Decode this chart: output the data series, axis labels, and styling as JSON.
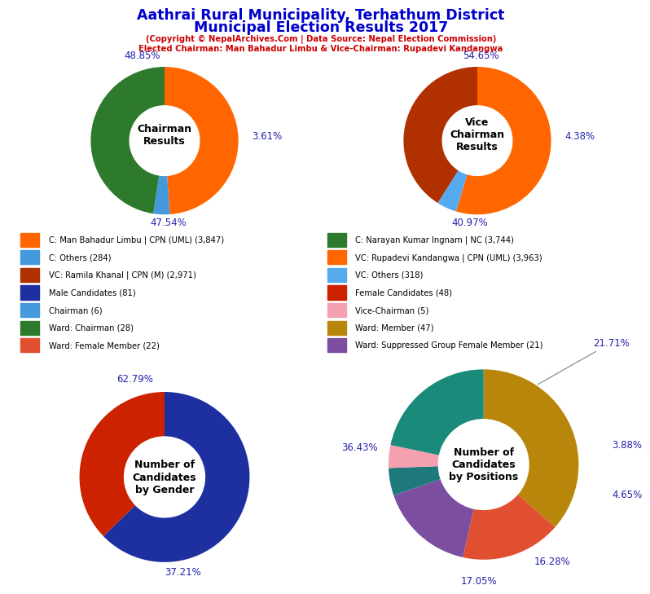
{
  "title_line1": "Aathrai Rural Municipality, Terhathum District",
  "title_line2": "Municipal Election Results 2017",
  "subtitle1": "(Copyright © NepalArchives.Com | Data Source: Nepal Election Commission)",
  "subtitle2": "Elected Chairman: Man Bahadur Limbu & Vice-Chairman: Rupadevi Kandangwa",
  "title_color": "#0000CC",
  "subtitle_color": "#CC0000",
  "label_color": "#2222AA",
  "chairman_values": [
    48.85,
    3.61,
    47.54
  ],
  "chairman_colors": [
    "#FF6600",
    "#4499DD",
    "#2D7A2D"
  ],
  "chairman_label": "Chairman\nResults",
  "chairman_pct_labels": [
    "48.85%",
    "3.61%",
    "47.54%"
  ],
  "vc_values": [
    54.65,
    4.38,
    40.97
  ],
  "vc_colors": [
    "#FF6600",
    "#55AAEE",
    "#B03000"
  ],
  "vc_label": "Vice\nChairman\nResults",
  "vc_pct_labels": [
    "54.65%",
    "4.38%",
    "40.97%"
  ],
  "gender_values": [
    62.79,
    37.21
  ],
  "gender_colors": [
    "#1E2FA0",
    "#CC2200"
  ],
  "gender_label": "Number of\nCandidates\nby Gender",
  "gender_pct_labels": [
    "62.79%",
    "37.21%"
  ],
  "positions_values": [
    36.43,
    17.05,
    16.28,
    4.65,
    3.88,
    21.71
  ],
  "positions_colors": [
    "#B8860B",
    "#E05030",
    "#7B4EA0",
    "#1E7A7A",
    "#F5A0B0",
    "#1A8A7A"
  ],
  "positions_label": "Number of\nCandidates\nby Positions",
  "positions_pct_labels": [
    "36.43%",
    "17.05%",
    "16.28%",
    "4.65%",
    "3.88%",
    "21.71%"
  ],
  "legend_items_left": [
    {
      "label": "C: Man Bahadur Limbu | CPN (UML) (3,847)",
      "color": "#FF6600"
    },
    {
      "label": "C: Others (284)",
      "color": "#4499DD"
    },
    {
      "label": "VC: Ramila Khanal | CPN (M) (2,971)",
      "color": "#B03000"
    },
    {
      "label": "Male Candidates (81)",
      "color": "#1E2FA0"
    },
    {
      "label": "Chairman (6)",
      "color": "#4499DD"
    },
    {
      "label": "Ward: Chairman (28)",
      "color": "#2D7A2D"
    },
    {
      "label": "Ward: Female Member (22)",
      "color": "#E05030"
    }
  ],
  "legend_items_right": [
    {
      "label": "C: Narayan Kumar Ingnam | NC (3,744)",
      "color": "#2D7A2D"
    },
    {
      "label": "VC: Rupadevi Kandangwa | CPN (UML) (3,963)",
      "color": "#FF6600"
    },
    {
      "label": "VC: Others (318)",
      "color": "#55AAEE"
    },
    {
      "label": "Female Candidates (48)",
      "color": "#CC2200"
    },
    {
      "label": "Vice-Chairman (5)",
      "color": "#F5A0B0"
    },
    {
      "label": "Ward: Member (47)",
      "color": "#B8860B"
    },
    {
      "label": "Ward: Suppressed Group Female Member (21)",
      "color": "#7B4EA0"
    }
  ]
}
